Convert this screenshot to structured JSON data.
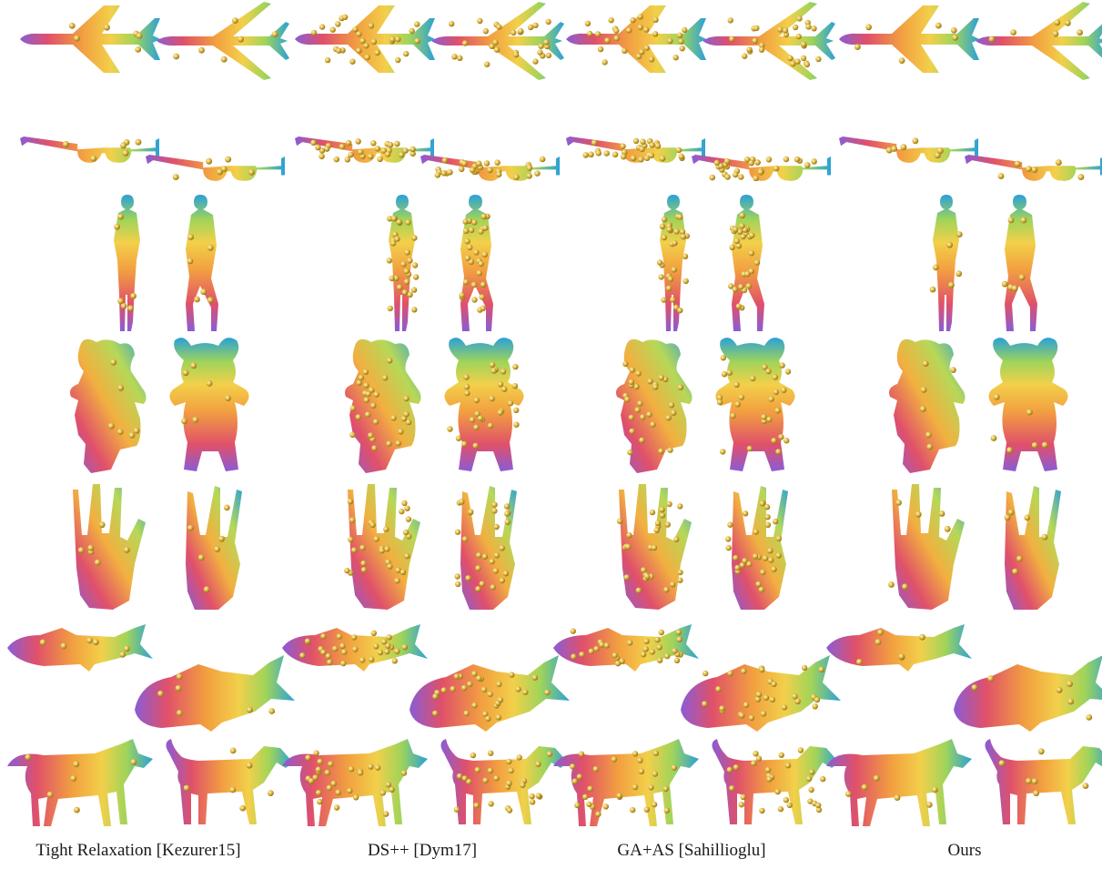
{
  "figure": {
    "columns": [
      {
        "label": "Tight Relaxation [Kezurer15]",
        "landmark_density": "sparse"
      },
      {
        "label": "DS++ [Dym17]",
        "landmark_density": "dense"
      },
      {
        "label": "GA+AS [Sahillioglu]",
        "landmark_density": "dense"
      },
      {
        "label": "Ours",
        "landmark_density": "sparse"
      }
    ],
    "rows": [
      "airplane",
      "glasses",
      "human",
      "teddy",
      "hand",
      "fish",
      "dog"
    ],
    "colormap": [
      "#8a5cd6",
      "#e0506a",
      "#f28a3a",
      "#f2c84a",
      "#9fd45a",
      "#3fb7c9",
      "#2aa0d8"
    ]
  }
}
